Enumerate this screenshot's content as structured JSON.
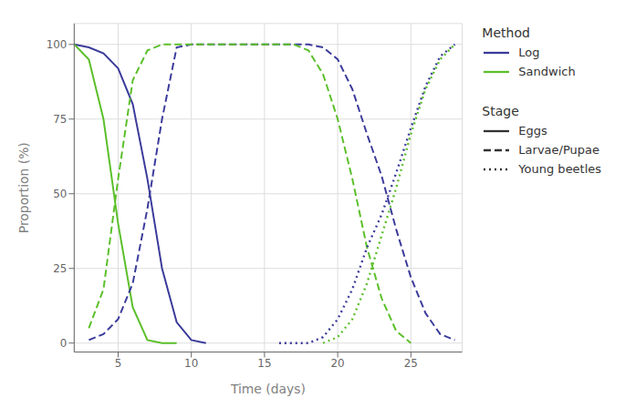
{
  "chart_data": {
    "type": "line",
    "xlabel": "Time (days)",
    "ylabel": "Proportion (%)",
    "xlim": [
      2,
      28.5
    ],
    "ylim": [
      -3,
      107
    ],
    "xticks": [
      5,
      10,
      15,
      20,
      25
    ],
    "yticks": [
      0,
      25,
      50,
      75,
      100
    ],
    "grid": true,
    "legend": "right",
    "series": [
      {
        "method": "Log",
        "stage": "Eggs",
        "color": "#3B3B9B",
        "line_style": "solid",
        "x": [
          2,
          3,
          4,
          5,
          6,
          7,
          8,
          9,
          10,
          11
        ],
        "values": [
          100,
          99,
          97,
          92,
          80,
          55,
          25,
          7,
          1,
          0
        ]
      },
      {
        "method": "Sandwich",
        "stage": "Eggs",
        "color": "#5BBF2A",
        "line_style": "solid",
        "x": [
          2,
          3,
          4,
          5,
          6,
          7,
          8,
          9
        ],
        "values": [
          100,
          95,
          75,
          40,
          12,
          1,
          0,
          0
        ]
      },
      {
        "method": "Log",
        "stage": "Larvae/Pupae",
        "color": "#3B3B9B",
        "line_style": "dashed",
        "x": [
          3,
          4,
          5,
          6,
          7,
          8,
          9,
          10,
          11,
          12,
          13,
          14,
          15,
          16,
          17,
          18,
          19,
          20,
          21,
          22,
          23,
          24,
          25,
          26,
          27,
          28
        ],
        "values": [
          1,
          3,
          8,
          20,
          45,
          75,
          99,
          100,
          100,
          100,
          100,
          100,
          100,
          100,
          100,
          100,
          99,
          95,
          85,
          70,
          56,
          38,
          22,
          10,
          3,
          1
        ]
      },
      {
        "method": "Sandwich",
        "stage": "Larvae/Pupae",
        "color": "#5BBF2A",
        "line_style": "dashed",
        "x": [
          3,
          4,
          5,
          6,
          7,
          8,
          9,
          10,
          11,
          12,
          13,
          14,
          15,
          16,
          17,
          18,
          19,
          20,
          21,
          22,
          23,
          24,
          25
        ],
        "values": [
          5,
          18,
          55,
          88,
          98,
          100,
          100,
          100,
          100,
          100,
          100,
          100,
          100,
          100,
          100,
          98,
          90,
          75,
          55,
          32,
          15,
          4,
          0
        ]
      },
      {
        "method": "Log",
        "stage": "Young beetles",
        "color": "#3B3B9B",
        "line_style": "dotted",
        "x": [
          16,
          17,
          18,
          19,
          20,
          21,
          22,
          23,
          24,
          25,
          26,
          27,
          28
        ],
        "values": [
          0,
          0,
          0,
          2,
          8,
          18,
          32,
          43,
          57,
          72,
          86,
          96,
          100
        ]
      },
      {
        "method": "Sandwich",
        "stage": "Young beetles",
        "color": "#5BBF2A",
        "line_style": "dotted",
        "x": [
          19,
          20,
          21,
          22,
          23,
          24,
          25,
          26,
          27,
          28
        ],
        "values": [
          0,
          2,
          8,
          20,
          36,
          52,
          70,
          85,
          95,
          100
        ]
      }
    ],
    "legends": [
      {
        "title": "Method",
        "entries": [
          {
            "name": "Log",
            "color": "#3B3B9B",
            "line_style": "solid"
          },
          {
            "name": "Sandwich",
            "color": "#5BBF2A",
            "line_style": "solid"
          }
        ]
      },
      {
        "title": "Stage",
        "entries": [
          {
            "name": "Eggs",
            "line_style": "solid"
          },
          {
            "name": "Larvae/Pupae",
            "line_style": "dashed"
          },
          {
            "name": "Young beetles",
            "line_style": "dotted"
          }
        ]
      }
    ]
  }
}
